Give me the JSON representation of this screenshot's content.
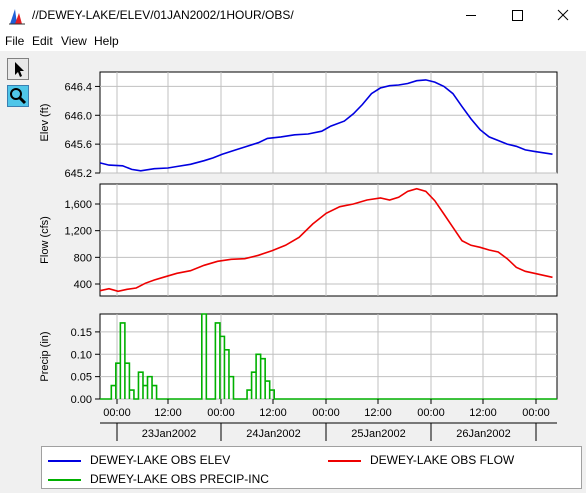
{
  "window": {
    "title": "//DEWEY-LAKE/ELEV/01JAN2002/1HOUR/OBS/",
    "minimize_icon": "minimize-icon",
    "maximize_icon": "maximize-icon",
    "close_icon": "close-icon"
  },
  "menu": [
    {
      "label": "File"
    },
    {
      "label": "Edit"
    },
    {
      "label": "View"
    },
    {
      "label": "Help"
    }
  ],
  "toolbar": {
    "tools": [
      {
        "name": "pointer",
        "icon": "arrow-pointer-icon"
      },
      {
        "name": "zoom",
        "icon": "magnifier-icon",
        "active": true
      }
    ]
  },
  "x_axis": {
    "time_ticks": [
      "00:00",
      "12:00",
      "00:00",
      "12:00",
      "00:00",
      "12:00",
      "00:00",
      "12:00",
      "00:00"
    ],
    "date_labels": [
      "23Jan2002",
      "24Jan2002",
      "25Jan2002",
      "26Jan2002"
    ]
  },
  "colors": {
    "elev": "#0000e0",
    "flow": "#ee0000",
    "precip": "#00b000",
    "grid": "#c0c0c0"
  },
  "chart_data": [
    {
      "type": "line",
      "ylabel": "Elev (ft)",
      "yticks": [
        645.2,
        645.6,
        646.0,
        646.4
      ],
      "ytick_labels": [
        "645.2",
        "645.6",
        "646.0",
        "646.4"
      ],
      "ylim": [
        645.2,
        646.6
      ],
      "x_unit": "hours since 22Jan2002 18:00",
      "xlim": [
        0,
        101
      ],
      "series": [
        {
          "name": "DEWEY-LAKE OBS ELEV",
          "color": "#0000e0",
          "x": [
            0,
            2,
            5,
            7,
            9,
            12,
            15,
            17,
            20,
            23,
            25,
            27,
            30,
            32,
            35,
            37,
            40,
            43,
            46,
            49,
            51,
            54,
            56,
            58,
            60,
            62,
            64,
            66,
            68,
            70,
            72,
            74,
            76,
            78,
            80,
            82,
            84,
            86,
            88,
            90,
            92,
            94,
            96,
            98,
            100
          ],
          "y": [
            645.34,
            645.31,
            645.3,
            645.25,
            645.23,
            645.26,
            645.27,
            645.29,
            645.32,
            645.37,
            645.41,
            645.46,
            645.52,
            645.56,
            645.62,
            645.68,
            645.7,
            645.73,
            645.74,
            645.78,
            645.85,
            645.92,
            646.02,
            646.15,
            646.3,
            646.38,
            646.41,
            646.42,
            646.44,
            646.48,
            646.49,
            646.46,
            646.4,
            646.3,
            646.12,
            645.95,
            645.8,
            645.7,
            645.65,
            645.6,
            645.57,
            645.52,
            645.5,
            645.48,
            645.46
          ]
        }
      ]
    },
    {
      "type": "line",
      "ylabel": "Flow (cfs)",
      "yticks": [
        400,
        800,
        1200,
        1600
      ],
      "ytick_labels": [
        "400",
        "800",
        "1,200",
        "1,600"
      ],
      "ylim": [
        220,
        1900
      ],
      "x_unit": "hours since 22Jan2002 18:00",
      "xlim": [
        0,
        101
      ],
      "series": [
        {
          "name": "DEWEY-LAKE OBS FLOW",
          "color": "#ee0000",
          "x": [
            0,
            2,
            4,
            6,
            8,
            10,
            12,
            14,
            17,
            20,
            23,
            26,
            29,
            32,
            35,
            38,
            41,
            44,
            47,
            50,
            53,
            56,
            59,
            62,
            64,
            66,
            68,
            70,
            72,
            74,
            76,
            78,
            80,
            82,
            84,
            86,
            88,
            90,
            92,
            94,
            96,
            98,
            100
          ],
          "y": [
            300,
            330,
            290,
            320,
            340,
            410,
            460,
            500,
            560,
            600,
            680,
            740,
            770,
            780,
            830,
            900,
            980,
            1100,
            1300,
            1460,
            1560,
            1600,
            1660,
            1690,
            1660,
            1700,
            1790,
            1830,
            1790,
            1650,
            1450,
            1250,
            1050,
            980,
            950,
            910,
            880,
            780,
            650,
            590,
            560,
            530,
            500
          ]
        }
      ]
    },
    {
      "type": "bar",
      "ylabel": "Precip (in)",
      "yticks": [
        0.0,
        0.05,
        0.1,
        0.15
      ],
      "ytick_labels": [
        "0.00",
        "0.05",
        "0.10",
        "0.15"
      ],
      "ylim": [
        0,
        0.19
      ],
      "x_unit": "hours since 22Jan2002 18:00",
      "xlim": [
        0,
        101
      ],
      "series": [
        {
          "name": "DEWEY-LAKE OBS PRECIP-INC",
          "color": "#00b000",
          "x": [
            3,
            4,
            5,
            6,
            7,
            9,
            10,
            11,
            12,
            13,
            23,
            24,
            26,
            27,
            28,
            29,
            33,
            34,
            35,
            36,
            37,
            38
          ],
          "y": [
            0.03,
            0.08,
            0.17,
            0.08,
            0.02,
            0.06,
            0.03,
            0.05,
            0.03,
            0.0,
            0.19,
            0.0,
            0.17,
            0.14,
            0.11,
            0.05,
            0.02,
            0.06,
            0.1,
            0.09,
            0.04,
            0.02
          ]
        }
      ]
    }
  ]
}
